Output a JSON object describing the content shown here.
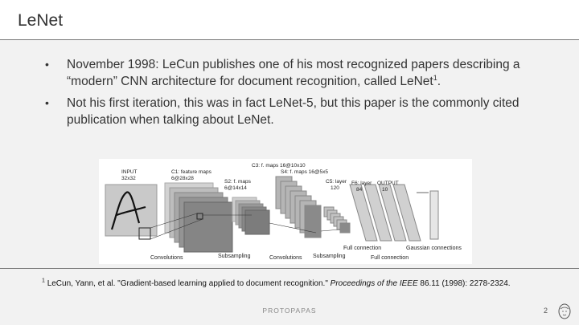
{
  "slide": {
    "title": "LeNet",
    "bullets": [
      {
        "text": "November 1998: LeCun publishes one of his most recognized papers describing a “modern” CNN architecture for document recognition, called LeNet",
        "sup": "1",
        "tail": "."
      },
      {
        "text": "Not his first iteration, this was in fact LeNet-5, but this paper is the commonly cited publication when talking about LeNet.",
        "sup": "",
        "tail": ""
      }
    ],
    "figure": {
      "input_label_1": "INPUT",
      "input_label_2": "32x32",
      "c1_label_1": "C1: feature maps",
      "c1_label_2": "6@28x28",
      "s2_label_1": "S2: f. maps",
      "s2_label_2": "6@14x14",
      "c3_label": "C3: f. maps 16@10x10",
      "s4_label": "S4: f. maps 16@5x5",
      "c5_label_1": "C5: layer",
      "c5_label_2": "120",
      "f6_label_1": "F6: layer",
      "f6_label_2": "84",
      "output_label_1": "OUTPUT",
      "output_label_2": "10",
      "bottom_convolutions_1": "Convolutions",
      "bottom_subsampling_1": "Subsampling",
      "bottom_convolutions_2": "Convolutions",
      "bottom_subsampling_2": "Subsampling",
      "bottom_full_connection_1": "Full connection",
      "bottom_full_connection_2": "Full connection",
      "bottom_gaussian": "Gaussian connections"
    },
    "footnote": {
      "sup": "1",
      "authors": "LeCun, Yann, et al. \"Gradient-based learning applied to document recognition.\" ",
      "journal": "Proceedings of the IEEE",
      "rest": " 86.11 (1998): 2278-2324."
    },
    "footer": {
      "author": "PROTOPAPAS",
      "page": "2"
    }
  }
}
